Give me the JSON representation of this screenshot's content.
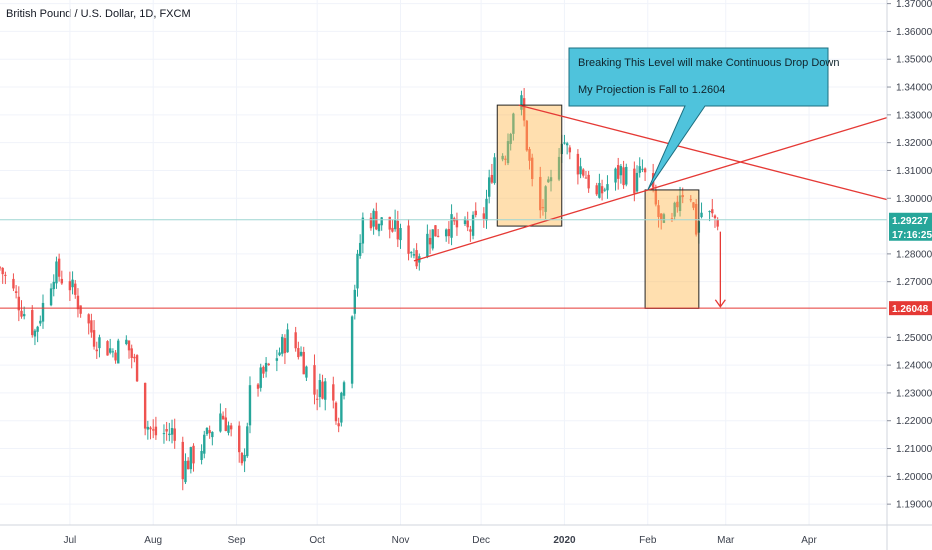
{
  "title": "British Pound / U.S. Dollar, 1D, FXCM",
  "chart_data": {
    "type": "candlestick",
    "ylim": [
      1.1825,
      1.3713
    ],
    "y_ticks": [
      {
        "label": "1.37000",
        "value": 1.37
      },
      {
        "label": "1.36000",
        "value": 1.36
      },
      {
        "label": "1.35000",
        "value": 1.35
      },
      {
        "label": "1.34000",
        "value": 1.34
      },
      {
        "label": "1.33000",
        "value": 1.33
      },
      {
        "label": "1.32000",
        "value": 1.32
      },
      {
        "label": "1.31000",
        "value": 1.31
      },
      {
        "label": "1.30000",
        "value": 1.3
      },
      {
        "label": "1.28000",
        "value": 1.28
      },
      {
        "label": "1.27000",
        "value": 1.27
      },
      {
        "label": "1.25000",
        "value": 1.25
      },
      {
        "label": "1.24000",
        "value": 1.24
      },
      {
        "label": "1.23000",
        "value": 1.23
      },
      {
        "label": "1.22000",
        "value": 1.22
      },
      {
        "label": "1.21000",
        "value": 1.21
      },
      {
        "label": "1.20000",
        "value": 1.2
      },
      {
        "label": "1.19000",
        "value": 1.19
      }
    ],
    "x_range": [
      "2019-06-05",
      "2020-04-30"
    ],
    "x_ticks": [
      {
        "label": "Jul",
        "date": "2019-07-01"
      },
      {
        "label": "Aug",
        "date": "2019-08-01"
      },
      {
        "label": "Sep",
        "date": "2019-09-01"
      },
      {
        "label": "Oct",
        "date": "2019-10-01"
      },
      {
        "label": "Nov",
        "date": "2019-11-01"
      },
      {
        "label": "Dec",
        "date": "2019-12-01"
      },
      {
        "label": "2020",
        "date": "2020-01-01",
        "bold": true
      },
      {
        "label": "Feb",
        "date": "2020-02-01"
      },
      {
        "label": "Mar",
        "date": "2020-03-01"
      },
      {
        "label": "Apr",
        "date": "2020-04-01"
      }
    ],
    "up_color": "#26a69a",
    "down_color": "#ef5350",
    "line_color": "#e53935",
    "price_line": {
      "value": 1.29227,
      "label": "1.29227",
      "countdown": "17:16:25",
      "color": "#26a69a",
      "line_color": "#9ed6d2"
    },
    "target_line": {
      "value": 1.26048,
      "label": "1.26048",
      "color": "#e53935"
    },
    "anchors": [
      [
        "2019-06-05",
        1.275
      ],
      [
        "2019-06-18",
        1.252
      ],
      [
        "2019-06-25",
        1.274
      ],
      [
        "2019-07-01",
        1.269
      ],
      [
        "2019-07-10",
        1.25
      ],
      [
        "2019-07-17",
        1.245
      ],
      [
        "2019-07-22",
        1.248
      ],
      [
        "2019-07-26",
        1.238
      ],
      [
        "2019-07-29",
        1.22
      ],
      [
        "2019-08-01",
        1.215
      ],
      [
        "2019-08-08",
        1.216
      ],
      [
        "2019-08-12",
        1.203
      ],
      [
        "2019-08-20",
        1.212
      ],
      [
        "2019-08-26",
        1.223
      ],
      [
        "2019-08-29",
        1.218
      ],
      [
        "2019-09-03",
        1.202
      ],
      [
        "2019-09-06",
        1.229
      ],
      [
        "2019-09-10",
        1.235
      ],
      [
        "2019-09-17",
        1.245
      ],
      [
        "2019-09-20",
        1.25
      ],
      [
        "2019-09-25",
        1.244
      ],
      [
        "2019-09-30",
        1.23
      ],
      [
        "2019-10-04",
        1.233
      ],
      [
        "2019-10-09",
        1.222
      ],
      [
        "2019-10-14",
        1.261
      ],
      [
        "2019-10-18",
        1.292
      ],
      [
        "2019-10-22",
        1.293
      ],
      [
        "2019-10-30",
        1.288
      ],
      [
        "2019-11-07",
        1.28
      ],
      [
        "2019-11-11",
        1.286
      ],
      [
        "2019-11-18",
        1.291
      ],
      [
        "2019-11-26",
        1.288
      ],
      [
        "2019-12-02",
        1.294
      ],
      [
        "2019-12-06",
        1.315
      ],
      [
        "2019-12-10",
        1.317
      ],
      [
        "2019-12-13",
        1.332
      ],
      [
        "2019-12-16",
        1.334
      ],
      [
        "2019-12-20",
        1.305
      ],
      [
        "2019-12-23",
        1.295
      ],
      [
        "2019-12-27",
        1.305
      ],
      [
        "2019-12-31",
        1.323
      ],
      [
        "2020-01-03",
        1.315
      ],
      [
        "2020-01-08",
        1.31
      ],
      [
        "2020-01-13",
        1.3
      ],
      [
        "2020-01-17",
        1.305
      ],
      [
        "2020-01-22",
        1.31
      ],
      [
        "2020-01-27",
        1.305
      ],
      [
        "2020-01-30",
        1.31
      ],
      [
        "2020-02-03",
        1.3
      ],
      [
        "2020-02-06",
        1.29
      ],
      [
        "2020-02-10",
        1.29
      ],
      [
        "2020-02-13",
        1.303
      ],
      [
        "2020-02-17",
        1.302
      ],
      [
        "2020-02-19",
        1.289
      ],
      [
        "2020-02-21",
        1.295
      ],
      [
        "2020-02-25",
        1.293
      ],
      [
        "2020-02-27",
        1.2923
      ]
    ],
    "trendlines": [
      {
        "name": "descending-resistance",
        "from": [
          "2019-12-15",
          1.3335
        ],
        "to": [
          "2020-04-30",
          1.2995
        ]
      },
      {
        "name": "ascending-support",
        "from": [
          "2019-11-06",
          1.2775
        ],
        "to": [
          "2020-04-30",
          1.329
        ]
      }
    ],
    "boxes": [
      {
        "name": "top-pattern-box",
        "from": [
          "2019-12-07",
          1.3335
        ],
        "to": [
          "2019-12-31",
          1.29
        ]
      },
      {
        "name": "projection-box",
        "from": [
          "2020-01-31",
          1.303
        ],
        "to": [
          "2020-02-20",
          1.2604
        ]
      }
    ],
    "arrow": {
      "from": [
        "2020-02-28",
        1.288
      ],
      "to": [
        "2020-02-28",
        1.261
      ]
    },
    "callout": {
      "line1": "Breaking This Level will make Continuous Drop Down",
      "line2": "My Projection is Fall to 1.2604",
      "tail": [
        "2020-02-01",
        1.303
      ],
      "fill": "#4fc3dc"
    }
  }
}
